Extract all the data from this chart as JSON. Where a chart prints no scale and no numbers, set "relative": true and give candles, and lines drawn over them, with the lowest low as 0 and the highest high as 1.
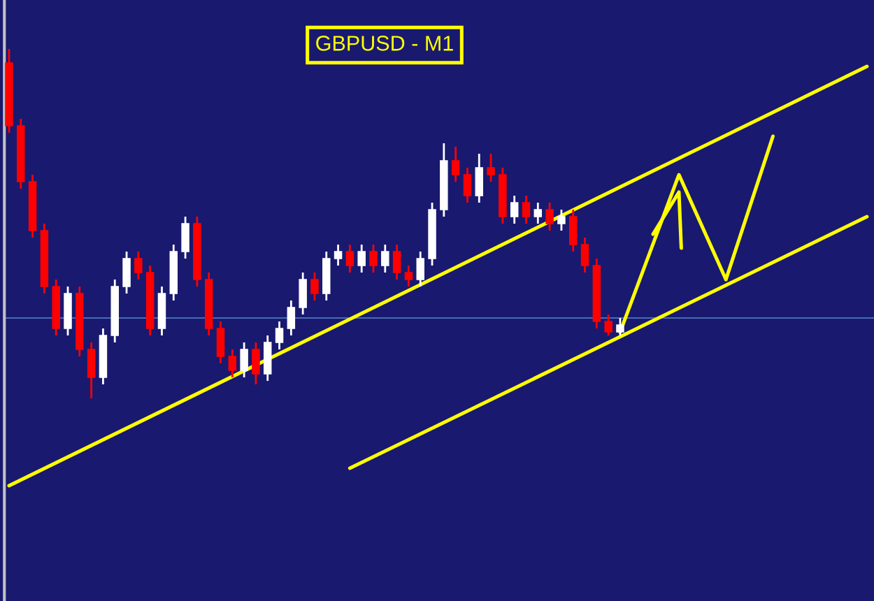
{
  "chart_data": {
    "type": "candlestick",
    "title": "GBPUSD - M1",
    "relative": true,
    "categories": [
      null,
      null,
      null,
      null,
      null,
      null,
      null,
      null,
      null,
      null,
      null,
      null,
      null,
      null,
      null,
      null,
      null,
      null,
      null,
      null,
      null,
      null,
      null,
      null,
      null,
      null,
      null,
      null,
      null,
      null,
      null,
      null,
      null,
      null,
      null,
      null,
      null,
      null,
      null,
      null,
      null,
      null,
      null,
      null,
      null,
      null,
      null,
      null,
      null,
      null,
      null,
      null,
      null,
      null,
      null,
      null,
      null,
      null,
      null,
      null,
      null,
      null,
      null,
      null,
      null,
      null,
      null,
      null,
      null,
      null,
      null,
      null,
      null,
      null
    ],
    "ohlc": [
      [
        0.96,
        1.0,
        0.76,
        0.78
      ],
      [
        0.78,
        0.8,
        0.6,
        0.62
      ],
      [
        0.62,
        0.64,
        0.46,
        0.48
      ],
      [
        0.48,
        0.5,
        0.3,
        0.32
      ],
      [
        0.32,
        0.34,
        0.18,
        0.2
      ],
      [
        0.2,
        0.32,
        0.18,
        0.3
      ],
      [
        0.3,
        0.32,
        0.12,
        0.14
      ],
      [
        0.14,
        0.16,
        0.0,
        0.06
      ],
      [
        0.06,
        0.2,
        0.04,
        0.18
      ],
      [
        0.18,
        0.34,
        0.16,
        0.32
      ],
      [
        0.32,
        0.42,
        0.3,
        0.4
      ],
      [
        0.4,
        0.42,
        0.34,
        0.36
      ],
      [
        0.36,
        0.38,
        0.18,
        0.2
      ],
      [
        0.2,
        0.32,
        0.18,
        0.3
      ],
      [
        0.3,
        0.44,
        0.28,
        0.42
      ],
      [
        0.42,
        0.52,
        0.4,
        0.5
      ],
      [
        0.5,
        0.52,
        0.32,
        0.34
      ],
      [
        0.34,
        0.36,
        0.18,
        0.2
      ],
      [
        0.2,
        0.22,
        0.1,
        0.12
      ],
      [
        0.12,
        0.14,
        0.06,
        0.08
      ],
      [
        0.08,
        0.16,
        0.06,
        0.14
      ],
      [
        0.14,
        0.16,
        0.04,
        0.07
      ],
      [
        0.07,
        0.18,
        0.05,
        0.16
      ],
      [
        0.16,
        0.22,
        0.14,
        0.2
      ],
      [
        0.2,
        0.28,
        0.18,
        0.26
      ],
      [
        0.26,
        0.36,
        0.24,
        0.34
      ],
      [
        0.34,
        0.36,
        0.28,
        0.3
      ],
      [
        0.3,
        0.42,
        0.28,
        0.4
      ],
      [
        0.4,
        0.44,
        0.38,
        0.42
      ],
      [
        0.42,
        0.44,
        0.36,
        0.38
      ],
      [
        0.38,
        0.44,
        0.36,
        0.42
      ],
      [
        0.42,
        0.44,
        0.36,
        0.38
      ],
      [
        0.38,
        0.44,
        0.36,
        0.42
      ],
      [
        0.42,
        0.44,
        0.34,
        0.36
      ],
      [
        0.36,
        0.38,
        0.32,
        0.34
      ],
      [
        0.34,
        0.42,
        0.32,
        0.4
      ],
      [
        0.4,
        0.56,
        0.38,
        0.54
      ],
      [
        0.54,
        0.73,
        0.52,
        0.68
      ],
      [
        0.68,
        0.72,
        0.62,
        0.64
      ],
      [
        0.64,
        0.66,
        0.56,
        0.58
      ],
      [
        0.58,
        0.7,
        0.56,
        0.66
      ],
      [
        0.66,
        0.7,
        0.62,
        0.64
      ],
      [
        0.64,
        0.66,
        0.5,
        0.52
      ],
      [
        0.52,
        0.58,
        0.5,
        0.56
      ],
      [
        0.56,
        0.58,
        0.5,
        0.52
      ],
      [
        0.52,
        0.56,
        0.5,
        0.54
      ],
      [
        0.54,
        0.56,
        0.48,
        0.5
      ],
      [
        0.5,
        0.54,
        0.48,
        0.52
      ],
      [
        0.52,
        0.54,
        0.42,
        0.44
      ],
      [
        0.44,
        0.46,
        0.36,
        0.38
      ],
      [
        0.38,
        0.4,
        0.2,
        0.22
      ],
      [
        0.22,
        0.24,
        0.18,
        0.19
      ],
      [
        0.19,
        0.23,
        0.18,
        0.21
      ],
      null,
      null,
      null,
      null,
      null,
      null,
      null,
      null,
      null,
      null,
      null,
      null,
      null,
      null,
      null,
      null,
      null,
      null,
      null,
      null,
      null
    ],
    "colors": [
      "#ff0000",
      "#ff0000",
      "#ff0000",
      "#ff0000",
      "#ff0000",
      "#ffffff",
      "#ff0000",
      "#ff0000",
      "#ffffff",
      "#ffffff",
      "#ffffff",
      "#ff0000",
      "#ff0000",
      "#ffffff",
      "#ffffff",
      "#ffffff",
      "#ff0000",
      "#ff0000",
      "#ff0000",
      "#ff0000",
      "#ffffff",
      "#ff0000",
      "#ffffff",
      "#ffffff",
      "#ffffff",
      "#ffffff",
      "#ff0000",
      "#ffffff",
      "#ffffff",
      "#ff0000",
      "#ffffff",
      "#ff0000",
      "#ffffff",
      "#ff0000",
      "#ff0000",
      "#ffffff",
      "#ffffff",
      "#ffffff",
      "#ff0000",
      "#ff0000",
      "#ffffff",
      "#ff0000",
      "#ff0000",
      "#ffffff",
      "#ff0000",
      "#ffffff",
      "#ff0000",
      "#ffffff",
      "#ff0000",
      "#ff0000",
      "#ff0000",
      "#ff0000",
      "#ffffff",
      null,
      null,
      null,
      null,
      null,
      null,
      null,
      null,
      null,
      null,
      null,
      null,
      null,
      null,
      null,
      null,
      null,
      null,
      null,
      null,
      null
    ],
    "series": [
      {
        "type": "line",
        "color": "#ffff00",
        "values": [
          -0.25,
          null,
          null,
          null,
          null,
          null,
          null,
          null,
          null,
          null,
          null,
          null,
          null,
          null,
          null,
          null,
          null,
          null,
          null,
          null,
          null,
          null,
          null,
          null,
          null,
          null,
          null,
          null,
          null,
          null,
          null,
          null,
          null,
          null,
          null,
          null,
          null,
          null,
          null,
          null,
          null,
          null,
          null,
          null,
          null,
          null,
          null,
          null,
          null,
          null,
          null,
          null,
          null,
          null,
          null,
          null,
          null,
          null,
          null,
          null,
          null,
          null,
          null,
          null,
          null,
          null,
          null,
          null,
          null,
          null,
          null,
          null,
          null,
          0.95
        ]
      },
      {
        "type": "line",
        "color": "#ffff00",
        "values": [
          null,
          null,
          null,
          null,
          null,
          null,
          null,
          null,
          null,
          null,
          null,
          null,
          null,
          null,
          null,
          null,
          null,
          null,
          null,
          null,
          null,
          null,
          null,
          null,
          null,
          null,
          null,
          null,
          null,
          -0.2,
          null,
          null,
          null,
          null,
          null,
          null,
          null,
          null,
          null,
          null,
          null,
          null,
          null,
          null,
          null,
          null,
          null,
          null,
          null,
          null,
          null,
          null,
          null,
          null,
          null,
          null,
          null,
          null,
          null,
          null,
          null,
          null,
          null,
          null,
          null,
          null,
          null,
          null,
          null,
          null,
          null,
          null,
          null,
          0.52
        ]
      },
      {
        "type": "line",
        "color": "#ffff00",
        "values": [
          null,
          null,
          null,
          null,
          null,
          null,
          null,
          null,
          null,
          null,
          null,
          null,
          null,
          null,
          null,
          null,
          null,
          null,
          null,
          null,
          null,
          null,
          null,
          null,
          null,
          null,
          null,
          null,
          null,
          null,
          null,
          null,
          null,
          null,
          null,
          null,
          null,
          null,
          null,
          null,
          null,
          null,
          null,
          null,
          null,
          null,
          null,
          null,
          null,
          null,
          null,
          null,
          0.19,
          null,
          null,
          null,
          null,
          0.64,
          null,
          null,
          null,
          0.34,
          null,
          null,
          null,
          0.75,
          null,
          null,
          null,
          null,
          null,
          null,
          null,
          null
        ]
      }
    ],
    "ref_lines": [
      {
        "axis": "y",
        "value": 0.23,
        "color": "#4a6ab4"
      }
    ]
  }
}
